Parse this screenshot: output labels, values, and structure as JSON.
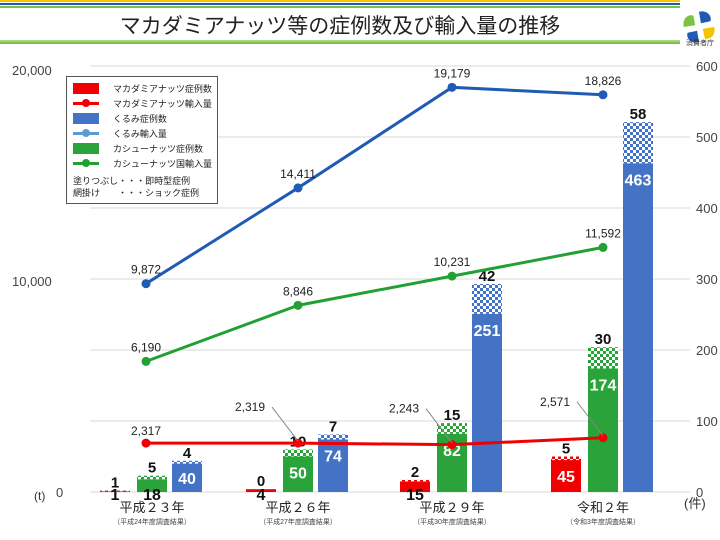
{
  "title": "マカダミアナッツ等の症例数及び輸入量の推移",
  "logo_text": "消費者庁",
  "colors": {
    "red": "#f00000",
    "blue": "#4472c4",
    "blue_line": "#1f5bb5",
    "green": "#2aa33a",
    "green_line": "#22a034"
  },
  "legend": {
    "items": [
      "マカダミアナッツ症例数",
      "マカダミアナッツ輸入量",
      "くるみ症例数",
      "くるみ輸入量",
      "カシューナッツ症例数",
      "カシューナッツ国輸入量"
    ],
    "note1": "塗りつぶし・・・即時型症例",
    "note2": "網掛け　　・・・ショック症例"
  },
  "chart_data": {
    "type": "bar+line",
    "title": "マカダミアナッツ等の症例数及び輸入量の推移",
    "categories": [
      "平成２３年",
      "平成２６年",
      "平成２９年",
      "令和２年"
    ],
    "sublabels": [
      "（平成24年度調査結果）",
      "（平成27年度調査結果）",
      "（平成30年度調査結果）",
      "（令和3年度調査結果）"
    ],
    "left_axis": {
      "unit": "(t)",
      "range": [
        0,
        20000
      ],
      "ticks": [
        "0",
        "10,000",
        "20,000"
      ]
    },
    "right_axis": {
      "unit": "(件)",
      "range": [
        0,
        600
      ],
      "ticks": [
        "0",
        "100",
        "200",
        "300",
        "400",
        "500",
        "600"
      ]
    },
    "bars": [
      {
        "name": "マカダミアナッツ症例数",
        "immediate": [
          1,
          4,
          15,
          45
        ],
        "shock": [
          1,
          0,
          2,
          5
        ]
      },
      {
        "name": "カシューナッツ症例数",
        "immediate": [
          18,
          50,
          82,
          174
        ],
        "shock": [
          5,
          10,
          15,
          30
        ]
      },
      {
        "name": "くるみ症例数",
        "immediate": [
          40,
          74,
          251,
          463
        ],
        "shock": [
          4,
          7,
          42,
          58
        ]
      }
    ],
    "lines": [
      {
        "name": "マカダミアナッツ輸入量",
        "values": [
          2317,
          2319,
          2243,
          2571
        ],
        "labels": [
          "2,317",
          "2,319",
          "2,243",
          "2,571"
        ]
      },
      {
        "name": "くるみ輸入量",
        "values": [
          9872,
          14411,
          19179,
          18826
        ],
        "labels": [
          "9,872",
          "14,411",
          "19,179",
          "18,826"
        ]
      },
      {
        "name": "カシューナッツ国輸入量",
        "values": [
          6190,
          8846,
          10231,
          11592
        ],
        "labels": [
          "6,190",
          "8,846",
          "10,231",
          "11,592"
        ]
      }
    ],
    "grid": true,
    "legend_position": "top-left"
  }
}
